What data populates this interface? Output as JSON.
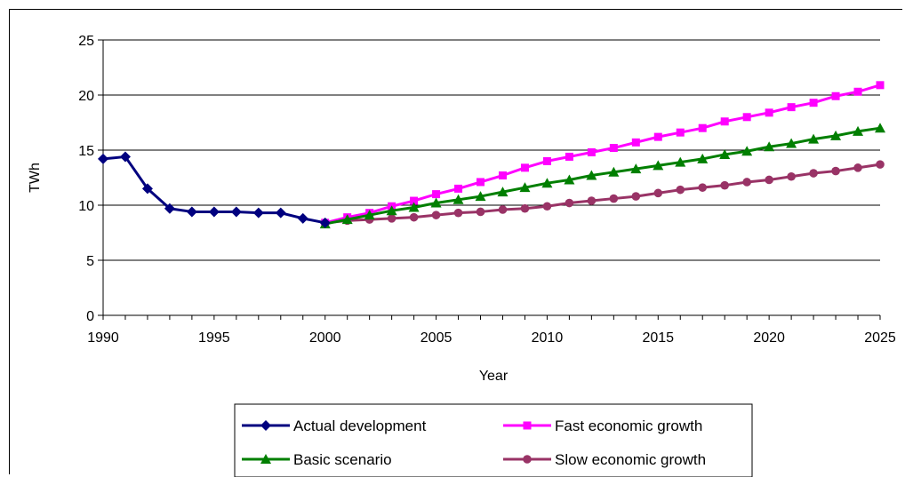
{
  "chart_data": {
    "type": "line",
    "title": "",
    "xlabel": "Year",
    "ylabel": "TWh",
    "xlim": [
      1990,
      2025
    ],
    "ylim": [
      0,
      25
    ],
    "x_ticks": [
      "1990",
      "1995",
      "2000",
      "2005",
      "2010",
      "2015",
      "2020",
      "2025"
    ],
    "y_ticks": [
      "0",
      "5",
      "10",
      "15",
      "20",
      "25"
    ],
    "grid": "horizontal",
    "legend_position": "bottom",
    "series": [
      {
        "name": "Actual development",
        "color": "#00007F",
        "marker": "diamond",
        "x": [
          1990,
          1991,
          1992,
          1993,
          1994,
          1995,
          1996,
          1997,
          1998,
          1999,
          2000
        ],
        "y": [
          14.2,
          14.4,
          11.5,
          9.7,
          9.4,
          9.4,
          9.4,
          9.3,
          9.3,
          8.8,
          8.4
        ]
      },
      {
        "name": "Fast economic growth",
        "color": "#FF00FF",
        "marker": "square",
        "x": [
          2000,
          2001,
          2002,
          2003,
          2004,
          2005,
          2006,
          2007,
          2008,
          2009,
          2010,
          2011,
          2012,
          2013,
          2014,
          2015,
          2016,
          2017,
          2018,
          2019,
          2020,
          2021,
          2022,
          2023,
          2024,
          2025
        ],
        "y": [
          8.4,
          8.9,
          9.3,
          9.9,
          10.4,
          11.0,
          11.5,
          12.1,
          12.7,
          13.4,
          14.0,
          14.4,
          14.8,
          15.2,
          15.7,
          16.2,
          16.6,
          17.0,
          17.6,
          18.0,
          18.4,
          18.9,
          19.3,
          19.9,
          20.3,
          20.9
        ]
      },
      {
        "name": "Basic scenario",
        "color": "#007F00",
        "marker": "triangle",
        "x": [
          2000,
          2001,
          2002,
          2003,
          2004,
          2005,
          2006,
          2007,
          2008,
          2009,
          2010,
          2011,
          2012,
          2013,
          2014,
          2015,
          2016,
          2017,
          2018,
          2019,
          2020,
          2021,
          2022,
          2023,
          2024,
          2025
        ],
        "y": [
          8.3,
          8.7,
          9.1,
          9.5,
          9.8,
          10.2,
          10.5,
          10.8,
          11.2,
          11.6,
          12.0,
          12.3,
          12.7,
          13.0,
          13.3,
          13.6,
          13.9,
          14.2,
          14.6,
          14.9,
          15.3,
          15.6,
          16.0,
          16.3,
          16.7,
          17.0
        ]
      },
      {
        "name": "Slow economic growth",
        "color": "#993366",
        "marker": "circle",
        "x": [
          2000,
          2001,
          2002,
          2003,
          2004,
          2005,
          2006,
          2007,
          2008,
          2009,
          2010,
          2011,
          2012,
          2013,
          2014,
          2015,
          2016,
          2017,
          2018,
          2019,
          2020,
          2021,
          2022,
          2023,
          2024,
          2025
        ],
        "y": [
          8.4,
          8.6,
          8.7,
          8.8,
          8.9,
          9.1,
          9.3,
          9.4,
          9.6,
          9.7,
          9.9,
          10.2,
          10.4,
          10.6,
          10.8,
          11.1,
          11.4,
          11.6,
          11.8,
          12.1,
          12.3,
          12.6,
          12.9,
          13.1,
          13.4,
          13.7
        ]
      }
    ]
  }
}
